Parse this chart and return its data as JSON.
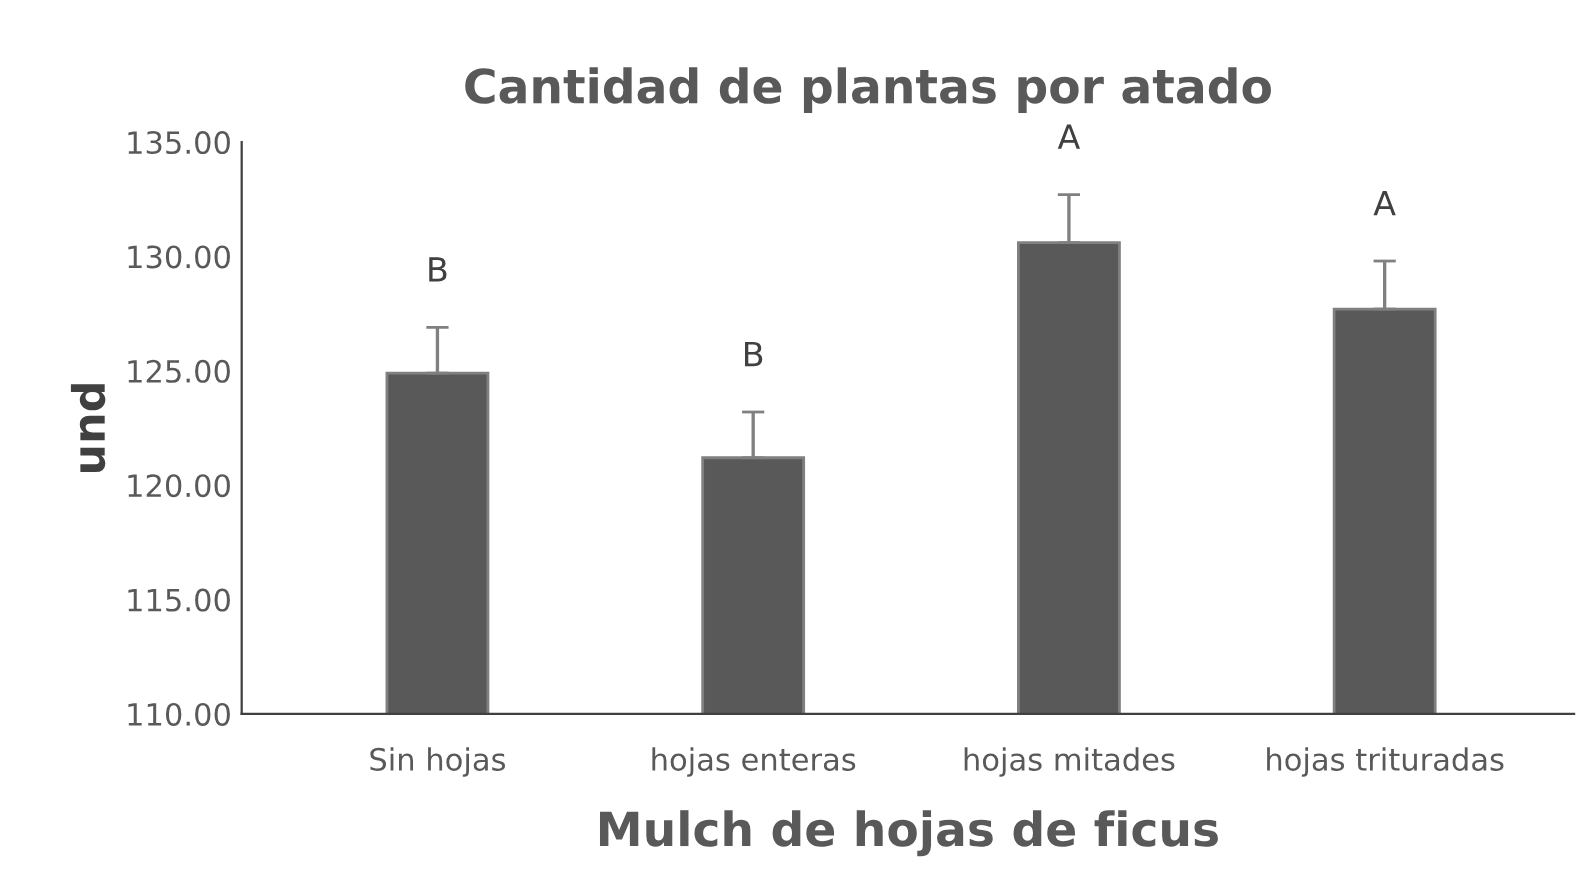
{
  "chart_data": {
    "type": "bar",
    "title": "Cantidad de plantas por atado",
    "xlabel": "Mulch de hojas de ficus",
    "ylabel": "und",
    "categories": [
      "Sin hojas",
      "hojas enteras",
      "hojas mitades",
      "hojas trituradas"
    ],
    "series": [
      {
        "color": "#595959",
        "values": [
          124.9,
          121.2,
          130.6,
          127.7
        ],
        "errors": [
          [
            124.9,
            126.9
          ],
          [
            121.2,
            123.2
          ],
          [
            130.6,
            132.7
          ],
          [
            127.7,
            129.8
          ]
        ]
      }
    ],
    "ylim": [
      110,
      135
    ],
    "yticks": [
      {
        "value": 110,
        "label": "110.00"
      },
      {
        "value": 115,
        "label": "115.00"
      },
      {
        "value": 120,
        "label": "120.00"
      },
      {
        "value": 125,
        "label": "125.00"
      },
      {
        "value": 130,
        "label": "130.00"
      },
      {
        "value": 135,
        "label": "135.00"
      }
    ],
    "annotations": [
      "B",
      "B",
      "A",
      "A"
    ],
    "grid": false,
    "legend": false
  }
}
